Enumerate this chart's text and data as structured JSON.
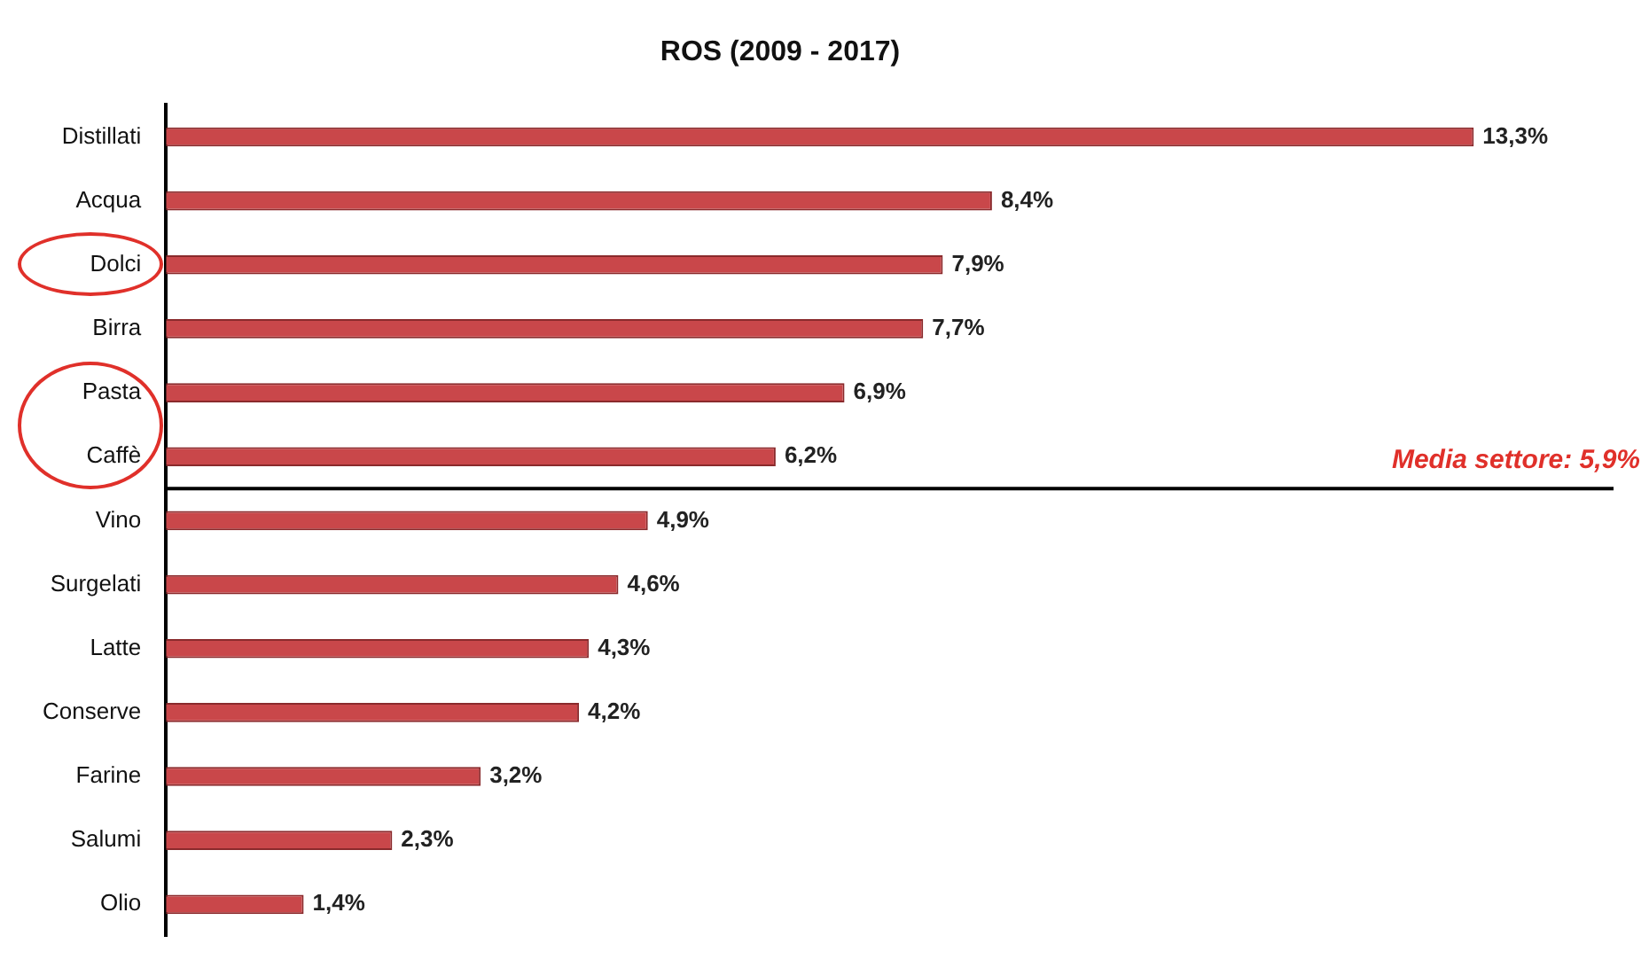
{
  "chart_data": {
    "type": "bar",
    "orientation": "horizontal",
    "title": "ROS (2009 - 2017)",
    "categories": [
      "Distillati",
      "Acqua",
      "Dolci",
      "Birra",
      "Pasta",
      "Caffè",
      "Vino",
      "Surgelati",
      "Latte",
      "Conserve",
      "Farine",
      "Salumi",
      "Olio"
    ],
    "values": [
      13.3,
      8.4,
      7.9,
      7.7,
      6.9,
      6.2,
      4.9,
      4.6,
      4.3,
      4.2,
      3.2,
      2.3,
      1.4
    ],
    "value_labels": [
      "13,3%",
      "8,4%",
      "7,9%",
      "7,7%",
      "6,9%",
      "6,2%",
      "4,9%",
      "4,6%",
      "4,3%",
      "4,2%",
      "3,2%",
      "2,3%",
      "1,4%"
    ],
    "color": "#c9474a",
    "tick_labels": "y",
    "legend": false,
    "annotations": [
      "Media settore: 5,9%"
    ]
  }
}
